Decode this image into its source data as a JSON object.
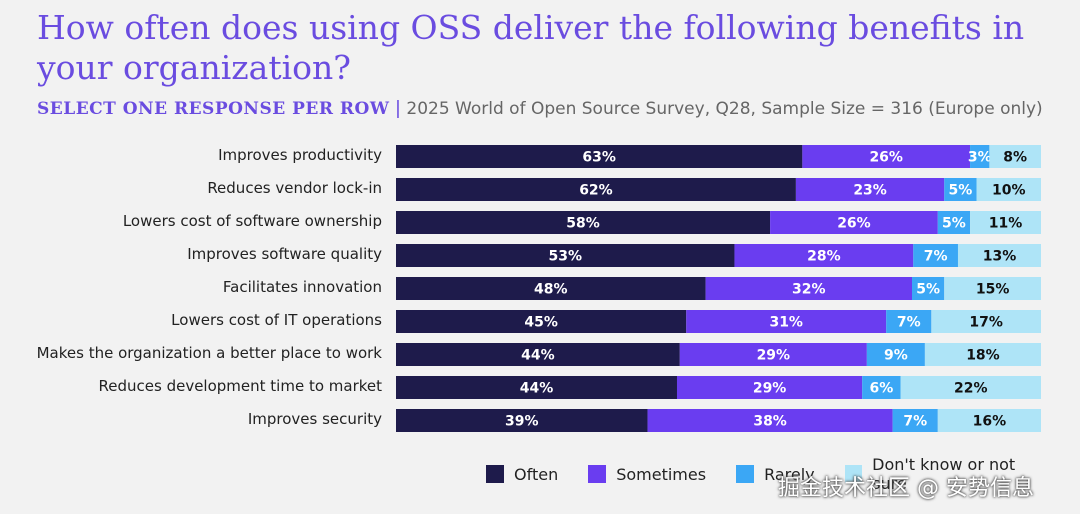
{
  "title": "How often does using OSS deliver the following benefits in your organization?",
  "subtitle": {
    "instruction": "SELECT ONE RESPONSE PER ROW",
    "separator": "|",
    "meta": "2025 World of Open Source Survey, Q28, Sample Size = 316 (Europe only)"
  },
  "watermark": "掘金技术社区 @ 安势信息",
  "colors": {
    "often": "#1e1b4b",
    "sometimes": "#6a3df0",
    "rarely": "#3ba7f5",
    "dont_know": "#aee4f7"
  },
  "chart_data": {
    "type": "bar",
    "orientation": "horizontal",
    "stacked": true,
    "xlim": [
      0,
      100
    ],
    "grid": false,
    "legend_position": "bottom",
    "categories": [
      "Improves productivity",
      "Reduces vendor lock-in",
      "Lowers cost of software ownership",
      "Improves software quality",
      "Facilitates innovation",
      "Lowers cost of IT operations",
      "Makes the organization a better place to work",
      "Reduces development time to market",
      "Improves security"
    ],
    "series": [
      {
        "name": "Often",
        "color": "#1e1b4b",
        "label_color": "#ffffff",
        "values": [
          63,
          62,
          58,
          53,
          48,
          45,
          44,
          44,
          39
        ]
      },
      {
        "name": "Sometimes",
        "color": "#6a3df0",
        "label_color": "#ffffff",
        "values": [
          26,
          23,
          26,
          28,
          32,
          31,
          29,
          29,
          38
        ]
      },
      {
        "name": "Rarely",
        "color": "#3ba7f5",
        "label_color": "#ffffff",
        "values": [
          3,
          5,
          5,
          7,
          5,
          7,
          9,
          6,
          7
        ]
      },
      {
        "name": "Don't know or not sure",
        "color": "#aee4f7",
        "label_color": "#111111",
        "values": [
          8,
          10,
          11,
          13,
          15,
          17,
          18,
          22,
          16
        ]
      }
    ]
  }
}
